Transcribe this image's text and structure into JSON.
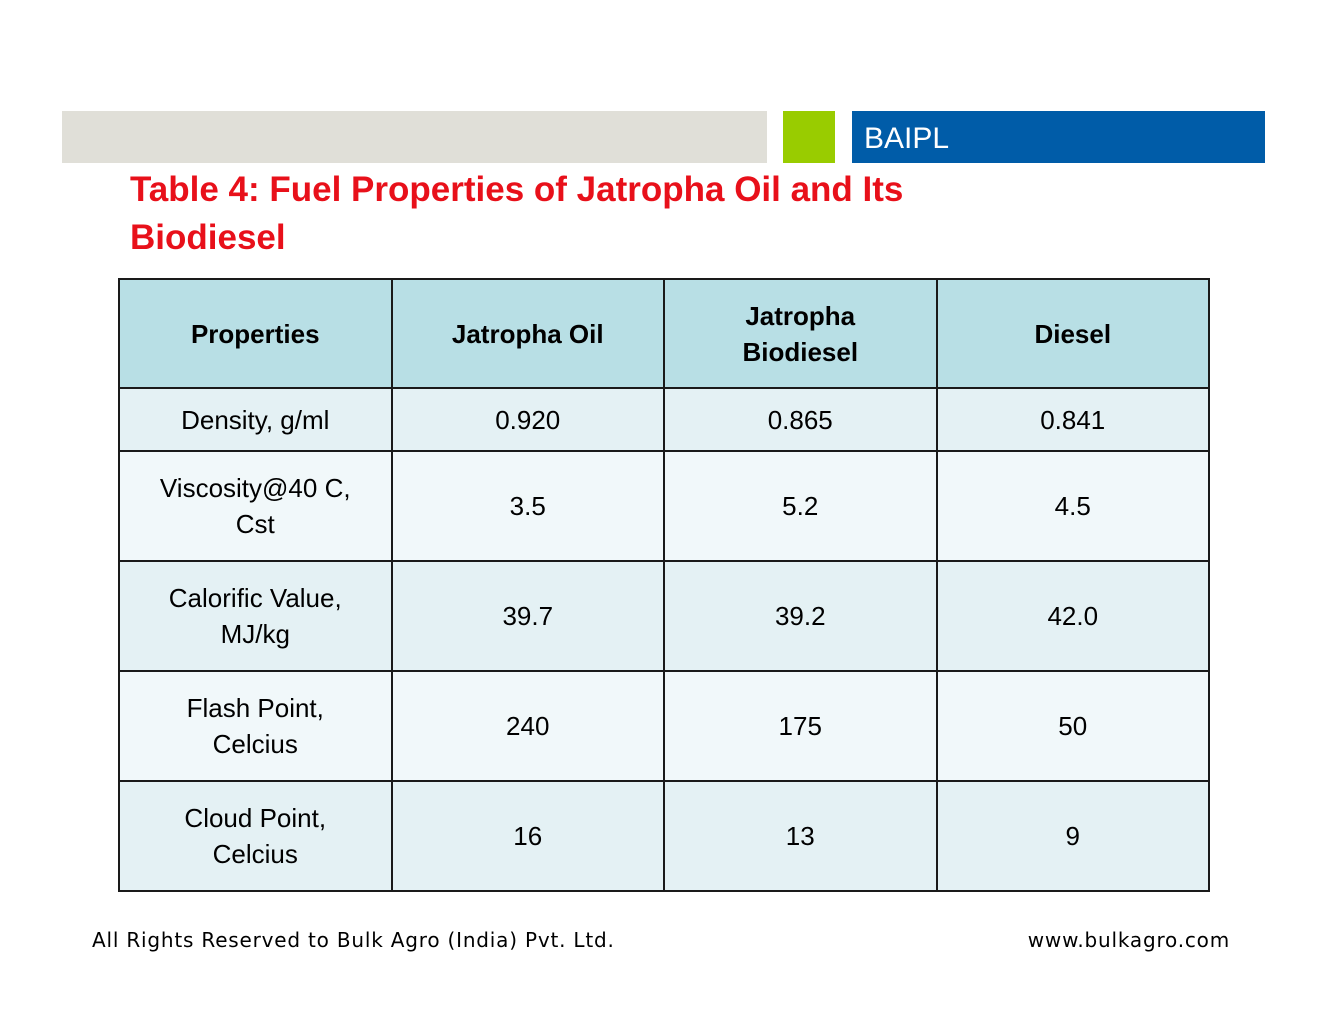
{
  "header": {
    "brand": "BAIPL"
  },
  "title": "Table 4: Fuel Properties of Jatropha Oil and Its Biodiesel",
  "table": {
    "columns": [
      "Properties",
      "Jatropha Oil",
      "Jatropha Biodiesel",
      "Diesel"
    ],
    "rows": [
      [
        "Density, g/ml",
        "0.920",
        "0.865",
        "0.841"
      ],
      [
        "Viscosity@40 C, Cst",
        "3.5",
        "5.2",
        "4.5"
      ],
      [
        "Calorific Value, MJ/kg",
        "39.7",
        "39.2",
        "42.0"
      ],
      [
        "Flash Point, Celcius",
        "240",
        "175",
        "50"
      ],
      [
        "Cloud Point, Celcius",
        "16",
        "13",
        "9"
      ]
    ]
  },
  "footer": {
    "left": "All Rights Reserved to Bulk Agro (India) Pvt. Ltd.",
    "right": "www.bulkagro.com"
  }
}
